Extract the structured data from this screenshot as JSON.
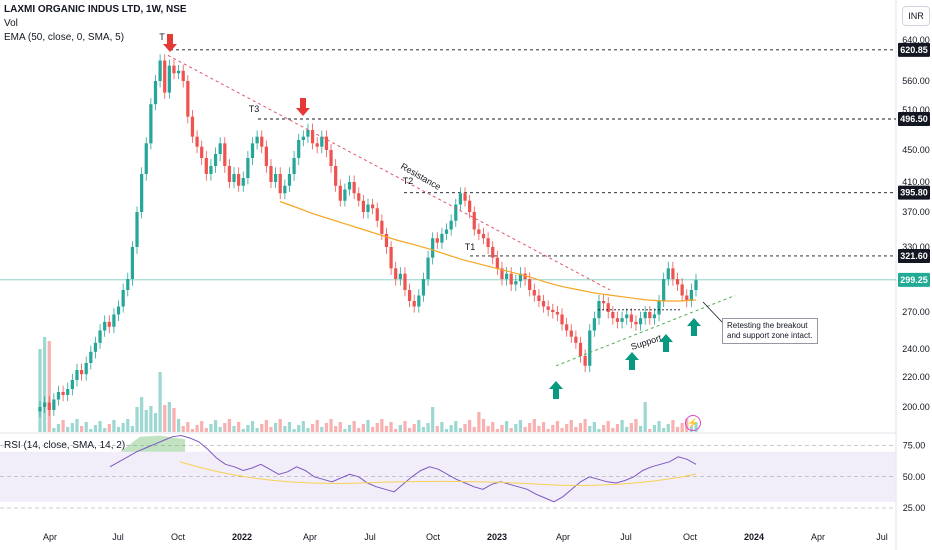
{
  "header": {
    "title": "LAXMI ORGANIC INDUS LTD, 1W, NSE",
    "vol_label": "Vol",
    "ema_label": "EMA (50, close, 0, SMA, 5)",
    "rsi_label": "RSI (14, close, SMA, 14, 2)",
    "currency": "INR"
  },
  "colors": {
    "up": "#26a69a",
    "down": "#ef5350",
    "ema": "#f5a623",
    "rsi_line": "#7e57c2",
    "rsi_ma": "#f7d154",
    "resistance": "#e0556a",
    "support": "#4caf50",
    "arrow_down": "#e53935",
    "arrow_up": "#089981",
    "last_price_bg": "#22ab94",
    "rsi_band": "#ede7f6"
  },
  "chart_data": {
    "type": "candlestick",
    "symbol": "LAXMI ORGANIC INDUS LTD",
    "timeframe": "1W",
    "exchange": "NSE",
    "x_axis_labels": [
      "Apr",
      "Jul",
      "Oct",
      "2022",
      "Apr",
      "Jul",
      "Oct",
      "2023",
      "Apr",
      "Jul",
      "Oct",
      "2024",
      "Apr",
      "Jul"
    ],
    "price_axis_ticks": [
      200,
      220,
      240,
      270,
      300,
      330,
      370,
      410,
      450,
      510,
      560,
      640
    ],
    "price_range": [
      185,
      650
    ],
    "last_price": "299.25",
    "horizontal_levels": [
      {
        "value": 620.85,
        "label": "620.85"
      },
      {
        "value": 496.5,
        "label": "496.50"
      },
      {
        "value": 395.8,
        "label": "395.80"
      },
      {
        "value": 321.6,
        "label": "321.60"
      }
    ],
    "annotations": {
      "t_labels": [
        "T",
        "T3",
        "T2",
        "T1"
      ],
      "resistance_label": "Resistance",
      "support_label": "Support",
      "note": "Retesting the breakout and support zone intact."
    },
    "ema_values": [
      384,
      376,
      368,
      362,
      356,
      350,
      344,
      338,
      333,
      328,
      323,
      318,
      314,
      310,
      306,
      302,
      297,
      293,
      290,
      287,
      285,
      283,
      281,
      280,
      280,
      281
    ],
    "weekly_ohlc_description": "Strong rally from ~200 (Apr 2021) to 620.85 peak (Sep 2021), then descending trend along resistance down to ~225 low (Mar 2023), followed by higher lows on a rising support line and a breakout above resistance around Sep 2023 to ~321, retesting near 299.",
    "rsi": {
      "ticks": [
        25.0,
        50.0,
        75.0
      ],
      "tick_labels": [
        "25.00",
        "50.00",
        "75.00"
      ],
      "upper_band": 70,
      "lower_band": 30
    }
  }
}
